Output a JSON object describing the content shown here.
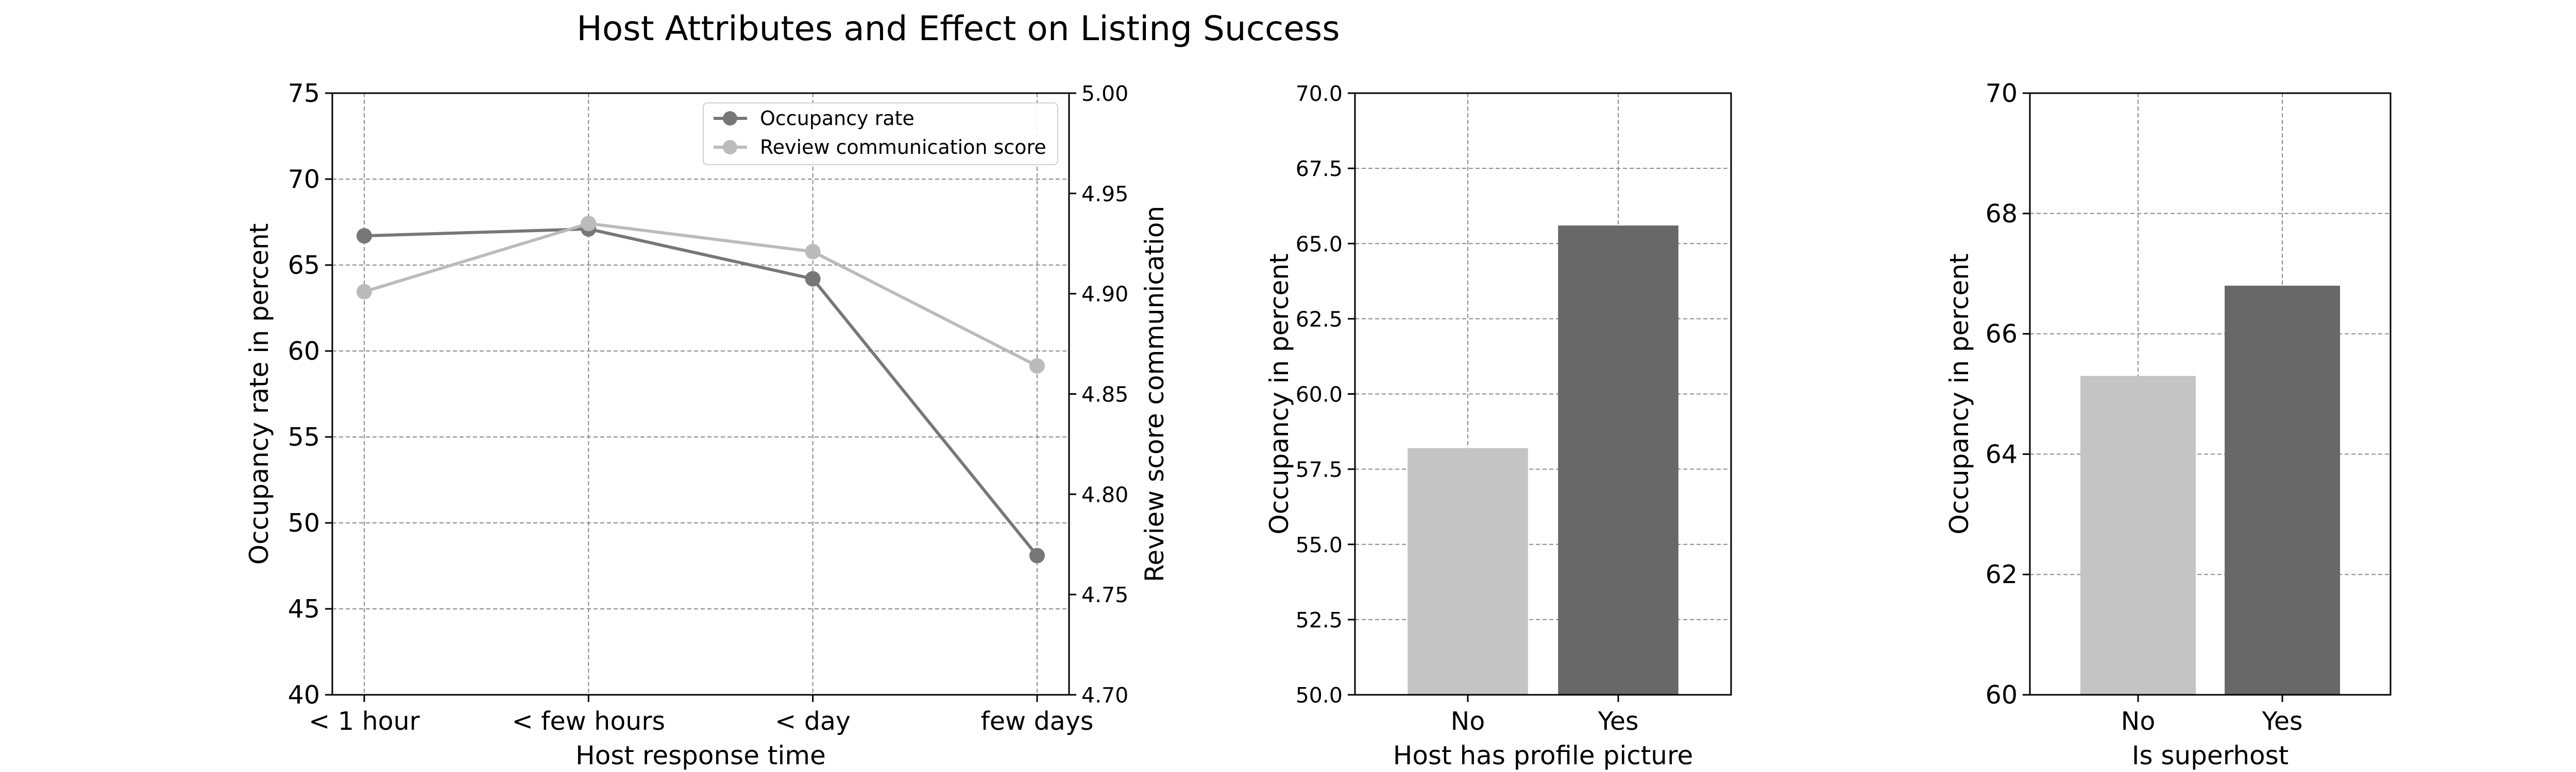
{
  "figure": {
    "title": "Host Attributes and Effect on Listing Success"
  },
  "chart_data": [
    {
      "type": "line",
      "categories": [
        "< 1 hour",
        "< few hours",
        "< day",
        "few days"
      ],
      "xlabel": "Host response time",
      "ylabel": "Occupancy rate in percent",
      "ylim": [
        40,
        75
      ],
      "yticks": [
        40,
        45,
        50,
        55,
        60,
        65,
        70,
        75
      ],
      "y2label": "Review score communication",
      "y2lim": [
        4.7,
        5.0
      ],
      "y2ticks": [
        "4.70",
        "4.75",
        "4.80",
        "4.85",
        "4.90",
        "4.95",
        "5.00"
      ],
      "grid": true,
      "legend_position": "top-right",
      "series": [
        {
          "name": "Occupancy rate",
          "axis": "left",
          "color": "#777777",
          "values": [
            66.7,
            67.1,
            64.2,
            48.1
          ]
        },
        {
          "name": "Review communication score",
          "axis": "right",
          "color": "#bbbbbb",
          "values": [
            4.901,
            4.935,
            4.921,
            4.864
          ]
        }
      ]
    },
    {
      "type": "bar",
      "categories": [
        "No",
        "Yes"
      ],
      "values": [
        58.2,
        65.6
      ],
      "colors": [
        "#c4c4c4",
        "#686868"
      ],
      "xlabel": "Host has profile picture",
      "ylabel": "Occupancy in percent",
      "ylim": [
        50,
        70
      ],
      "yticks": [
        "50.0",
        "52.5",
        "55.0",
        "57.5",
        "60.0",
        "62.5",
        "65.0",
        "67.5",
        "70.0"
      ],
      "grid": true
    },
    {
      "type": "bar",
      "categories": [
        "No",
        "Yes"
      ],
      "values": [
        65.3,
        66.8
      ],
      "colors": [
        "#c4c4c4",
        "#686868"
      ],
      "xlabel": "Is superhost",
      "ylabel": "Occupancy in percent",
      "ylim": [
        60,
        70
      ],
      "yticks": [
        "60",
        "62",
        "64",
        "66",
        "68",
        "70"
      ],
      "grid": true
    }
  ]
}
